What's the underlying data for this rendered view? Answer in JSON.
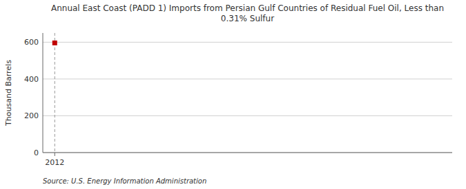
{
  "chart_data": {
    "type": "scatter",
    "title": "Annual East Coast (PADD 1) Imports from Persian Gulf Countries of Residual Fuel Oil, Less than\n0.31% Sulfur",
    "ylabel": "Thousand Barrels",
    "source": "Source: U.S. Energy Information Administration",
    "x": [
      2012
    ],
    "values": [
      596
    ],
    "color": "#c00000",
    "marker": "square",
    "xlim": [
      2011.7,
      2022
    ],
    "ylim": [
      0,
      650
    ],
    "xticks": [
      2012
    ],
    "yticks": [
      0,
      200,
      400,
      600
    ],
    "grid": "y"
  }
}
